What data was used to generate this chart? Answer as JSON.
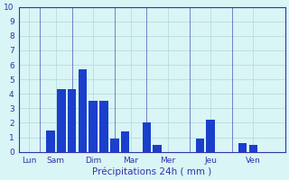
{
  "bar_x": [
    2,
    3,
    4,
    5,
    6,
    7,
    8,
    9,
    10,
    12,
    13,
    17,
    18,
    21,
    22,
    23
  ],
  "bar_heights": [
    0,
    1.5,
    4.3,
    4.3,
    5.7,
    3.5,
    3.5,
    0.9,
    1.4,
    2.0,
    0.5,
    0.9,
    2.2,
    0.6,
    0.5,
    0
  ],
  "day_tick_positions": [
    1,
    3.5,
    7,
    10.5,
    14,
    18,
    22
  ],
  "day_labels": [
    "Lun",
    "Sam",
    "Dim",
    "Mar",
    "Mer",
    "Jeu",
    "Ven"
  ],
  "day_sep_positions": [
    2,
    5,
    9,
    12,
    16,
    20
  ],
  "bar_color": "#1a3fcc",
  "background_color": "#d9f5f5",
  "grid_color": "#b0d8d8",
  "axis_color": "#3333aa",
  "xlabel": "Précipitations 24h ( mm )",
  "ylim": [
    0,
    10
  ],
  "xlim": [
    0,
    25
  ],
  "yticks": [
    0,
    1,
    2,
    3,
    4,
    5,
    6,
    7,
    8,
    9,
    10
  ],
  "bar_width": 0.8
}
